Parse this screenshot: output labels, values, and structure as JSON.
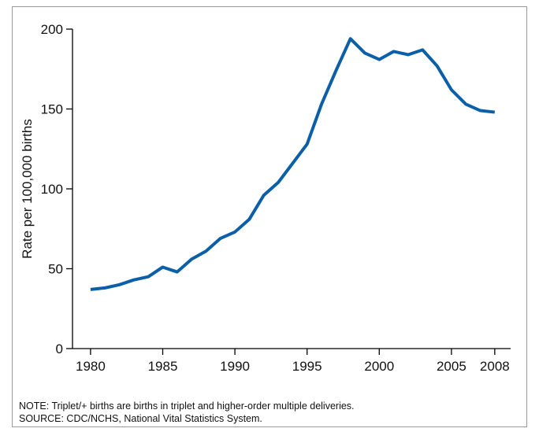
{
  "chart_data": {
    "type": "line",
    "y_label": "Rate per 100,000 births",
    "notes": [
      "NOTE: Triplet/+ births are births in triplet and higher-order multiple deliveries.",
      "SOURCE: CDC/NCHS, National Vital Statistics System."
    ],
    "x": [
      1980,
      1981,
      1982,
      1983,
      1984,
      1985,
      1986,
      1987,
      1988,
      1989,
      1990,
      1991,
      1992,
      1993,
      1994,
      1995,
      1996,
      1997,
      1998,
      1999,
      2000,
      2001,
      2002,
      2003,
      2004,
      2005,
      2006,
      2007,
      2008
    ],
    "series": [
      {
        "color": "#0b5fa8",
        "values": [
          37,
          38,
          40,
          43,
          45,
          51,
          48,
          56,
          61,
          69,
          73,
          81,
          96,
          104,
          116,
          128,
          153,
          174,
          194,
          185,
          181,
          186,
          184,
          187,
          177,
          162,
          153,
          149,
          148
        ]
      }
    ],
    "xlim": [
      1978.75,
      2009.1
    ],
    "xticks": [
      1980,
      1985,
      1990,
      1995,
      2000,
      2005,
      2008
    ],
    "ylim": [
      0,
      200
    ],
    "yticks": [
      0,
      50,
      100,
      150,
      200
    ]
  }
}
